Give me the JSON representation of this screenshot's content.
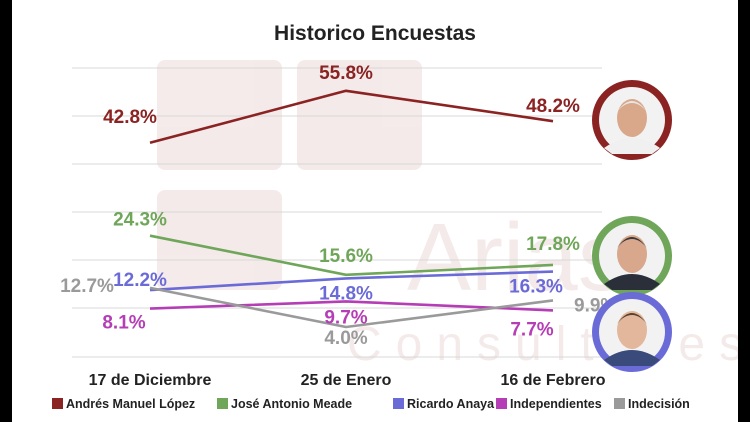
{
  "chart_data": {
    "type": "line",
    "title": "Historico Encuestas",
    "categories": [
      "17 de Diciembre",
      "25 de Enero",
      "16 de Febrero"
    ],
    "ylim": [
      0,
      60
    ],
    "series": [
      {
        "name": "Andrés Manuel López",
        "color": "#8B2323",
        "values": [
          42.8,
          55.8,
          48.2
        ],
        "labels": [
          "42.8%",
          "55.8%",
          "48.2%"
        ]
      },
      {
        "name": "José Antonio Meade",
        "color": "#6FA65A",
        "values": [
          24.3,
          15.6,
          17.8
        ],
        "labels": [
          "24.3%",
          "15.6%",
          "17.8%"
        ]
      },
      {
        "name": "Ricardo Anaya",
        "color": "#6B6BD8",
        "values": [
          12.2,
          14.8,
          16.3
        ],
        "labels": [
          "12.2%",
          "14.8%",
          "16.3%"
        ]
      },
      {
        "name": "Independientes",
        "color": "#B53DB5",
        "values": [
          8.1,
          9.7,
          7.7
        ],
        "labels": [
          "8.1%",
          "9.7%",
          "7.7%"
        ]
      },
      {
        "name": "Indecisión",
        "color": "#9A9A9A",
        "values": [
          12.7,
          4.0,
          9.9
        ],
        "labels": [
          "12.7%",
          "4.0%",
          "9.9%"
        ]
      }
    ],
    "watermark": "Arias Consultores"
  },
  "avatars": [
    {
      "name": "avatar-amlo",
      "ring": "#8B2323",
      "face": "#D9A88A",
      "hair": "#E6E6E6",
      "suit": "#F0F0F0"
    },
    {
      "name": "avatar-meade",
      "ring": "#6FA65A",
      "face": "#D8A78C",
      "hair": "#3A3A3A",
      "suit": "#2B2F3A"
    },
    {
      "name": "avatar-anaya",
      "ring": "#6B6BD8",
      "face": "#E2B79C",
      "hair": "#5A4030",
      "suit": "#3A4A7A"
    }
  ]
}
